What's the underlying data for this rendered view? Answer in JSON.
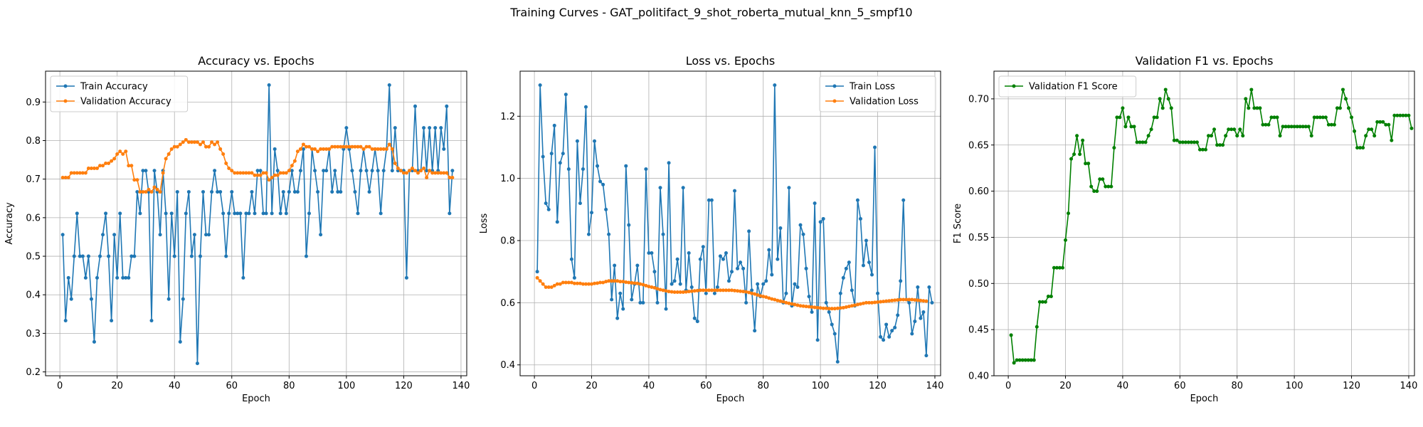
{
  "figure": {
    "suptitle": "Training Curves - GAT_politifact_9_shot_roberta_mutual_knn_5_smpf10"
  },
  "chart_data": [
    {
      "type": "line",
      "title": "Accuracy vs. Epochs",
      "xlabel": "Epoch",
      "ylabel": "Accuracy",
      "xlim": [
        -5,
        142
      ],
      "ylim": [
        0.19,
        0.98
      ],
      "xticks": [
        0,
        20,
        40,
        60,
        80,
        100,
        120,
        140
      ],
      "yticks": [
        0.2,
        0.3,
        0.4,
        0.5,
        0.6,
        0.7,
        0.8,
        0.9
      ],
      "ytick_labels": [
        "0.2",
        "0.3",
        "0.4",
        "0.5",
        "0.6",
        "0.7",
        "0.8",
        "0.9"
      ],
      "grid": true,
      "legend_position": "top-left",
      "series": [
        {
          "name": "Train Accuracy",
          "color": "#1f77b4",
          "values": [
            0.556,
            0.333,
            0.444,
            0.389,
            0.5,
            0.611,
            0.5,
            0.5,
            0.444,
            0.5,
            0.389,
            0.278,
            0.444,
            0.5,
            0.556,
            0.611,
            0.5,
            0.333,
            0.556,
            0.444,
            0.611,
            0.444,
            0.444,
            0.444,
            0.5,
            0.5,
            0.667,
            0.611,
            0.722,
            0.722,
            0.667,
            0.333,
            0.722,
            0.667,
            0.556,
            0.722,
            0.611,
            0.389,
            0.611,
            0.5,
            0.667,
            0.278,
            0.389,
            0.611,
            0.667,
            0.5,
            0.556,
            0.222,
            0.5,
            0.667,
            0.556,
            0.556,
            0.667,
            0.722,
            0.667,
            0.667,
            0.611,
            0.5,
            0.611,
            0.667,
            0.611,
            0.611,
            0.611,
            0.444,
            0.611,
            0.611,
            0.667,
            0.611,
            0.722,
            0.722,
            0.611,
            0.611,
            0.944,
            0.611,
            0.778,
            0.722,
            0.611,
            0.667,
            0.611,
            0.667,
            0.722,
            0.667,
            0.667,
            0.722,
            0.778,
            0.5,
            0.611,
            0.778,
            0.722,
            0.667,
            0.556,
            0.722,
            0.722,
            0.778,
            0.667,
            0.722,
            0.667,
            0.667,
            0.778,
            0.833,
            0.778,
            0.722,
            0.667,
            0.611,
            0.722,
            0.778,
            0.722,
            0.667,
            0.722,
            0.778,
            0.722,
            0.611,
            0.722,
            0.778,
            0.944,
            0.722,
            0.833,
            0.722,
            0.722,
            0.722,
            0.444,
            0.722,
            0.722,
            0.889,
            0.722,
            0.722,
            0.833,
            0.722,
            0.833,
            0.722,
            0.833,
            0.722,
            0.833,
            0.778,
            0.889,
            0.611,
            0.722
          ]
        },
        {
          "name": "Validation Accuracy",
          "color": "#ff7f0e",
          "values": [
            0.704,
            0.704,
            0.704,
            0.716,
            0.716,
            0.716,
            0.716,
            0.716,
            0.716,
            0.728,
            0.728,
            0.728,
            0.728,
            0.735,
            0.735,
            0.741,
            0.741,
            0.747,
            0.753,
            0.765,
            0.772,
            0.765,
            0.772,
            0.735,
            0.735,
            0.698,
            0.698,
            0.667,
            0.667,
            0.667,
            0.673,
            0.667,
            0.679,
            0.673,
            0.667,
            0.716,
            0.753,
            0.765,
            0.778,
            0.784,
            0.784,
            0.79,
            0.796,
            0.802,
            0.796,
            0.796,
            0.796,
            0.796,
            0.79,
            0.796,
            0.784,
            0.784,
            0.796,
            0.79,
            0.796,
            0.778,
            0.765,
            0.741,
            0.728,
            0.722,
            0.716,
            0.716,
            0.716,
            0.716,
            0.716,
            0.716,
            0.716,
            0.71,
            0.71,
            0.71,
            0.716,
            0.716,
            0.698,
            0.704,
            0.71,
            0.71,
            0.716,
            0.716,
            0.716,
            0.722,
            0.735,
            0.747,
            0.772,
            0.778,
            0.79,
            0.784,
            0.784,
            0.778,
            0.778,
            0.772,
            0.778,
            0.778,
            0.778,
            0.778,
            0.784,
            0.784,
            0.784,
            0.784,
            0.784,
            0.784,
            0.784,
            0.784,
            0.784,
            0.784,
            0.784,
            0.778,
            0.784,
            0.784,
            0.778,
            0.778,
            0.778,
            0.778,
            0.778,
            0.778,
            0.79,
            0.778,
            0.741,
            0.728,
            0.722,
            0.716,
            0.716,
            0.722,
            0.728,
            0.722,
            0.716,
            0.722,
            0.728,
            0.704,
            0.722,
            0.716,
            0.716,
            0.716,
            0.716,
            0.716,
            0.716,
            0.704,
            0.704
          ]
        }
      ]
    },
    {
      "type": "line",
      "title": "Loss vs. Epochs",
      "xlabel": "Epoch",
      "ylabel": "Loss",
      "xlim": [
        -5,
        142
      ],
      "ylim": [
        0.365,
        1.345
      ],
      "xticks": [
        0,
        20,
        40,
        60,
        80,
        100,
        120,
        140
      ],
      "yticks": [
        0.4,
        0.6,
        0.8,
        1.0,
        1.2
      ],
      "ytick_labels": [
        "0.4",
        "0.6",
        "0.8",
        "1.0",
        "1.2"
      ],
      "grid": true,
      "legend_position": "top-right",
      "series": [
        {
          "name": "Train Loss",
          "color": "#1f77b4",
          "values": [
            0.7,
            1.3,
            1.07,
            0.92,
            0.9,
            1.08,
            1.17,
            0.86,
            1.05,
            1.08,
            1.27,
            1.03,
            0.74,
            0.68,
            1.12,
            0.92,
            1.03,
            1.23,
            0.82,
            0.89,
            1.12,
            1.04,
            0.99,
            0.98,
            0.9,
            0.82,
            0.61,
            0.72,
            0.55,
            0.63,
            0.58,
            1.04,
            0.85,
            0.61,
            0.66,
            0.72,
            0.6,
            0.6,
            1.03,
            0.76,
            0.76,
            0.7,
            0.6,
            0.97,
            0.82,
            0.58,
            1.05,
            0.66,
            0.67,
            0.74,
            0.66,
            0.97,
            0.64,
            0.76,
            0.65,
            0.55,
            0.54,
            0.74,
            0.78,
            0.63,
            0.93,
            0.93,
            0.63,
            0.65,
            0.75,
            0.74,
            0.76,
            0.67,
            0.7,
            0.96,
            0.71,
            0.73,
            0.71,
            0.6,
            0.83,
            0.64,
            0.51,
            0.66,
            0.62,
            0.66,
            0.67,
            0.77,
            0.69,
            1.3,
            0.74,
            0.84,
            0.6,
            0.63,
            0.97,
            0.59,
            0.66,
            0.65,
            0.85,
            0.82,
            0.71,
            0.62,
            0.57,
            0.92,
            0.48,
            0.86,
            0.87,
            0.6,
            0.57,
            0.53,
            0.5,
            0.41,
            0.63,
            0.68,
            0.71,
            0.73,
            0.64,
            0.59,
            0.93,
            0.87,
            0.72,
            0.8,
            0.73,
            0.69,
            1.1,
            0.63,
            0.49,
            0.48,
            0.53,
            0.49,
            0.51,
            0.52,
            0.56,
            0.67,
            0.93,
            0.61,
            0.6,
            0.5,
            0.54,
            0.65,
            0.55,
            0.57,
            0.43,
            0.65,
            0.6
          ]
        },
        {
          "name": "Validation Loss",
          "color": "#ff7f0e",
          "values": [
            0.68,
            0.67,
            0.66,
            0.65,
            0.65,
            0.65,
            0.655,
            0.66,
            0.66,
            0.665,
            0.665,
            0.665,
            0.665,
            0.662,
            0.662,
            0.662,
            0.66,
            0.66,
            0.66,
            0.66,
            0.662,
            0.663,
            0.665,
            0.665,
            0.668,
            0.67,
            0.67,
            0.67,
            0.67,
            0.668,
            0.668,
            0.666,
            0.665,
            0.664,
            0.663,
            0.662,
            0.66,
            0.658,
            0.655,
            0.652,
            0.65,
            0.648,
            0.645,
            0.642,
            0.64,
            0.638,
            0.636,
            0.635,
            0.634,
            0.634,
            0.634,
            0.634,
            0.635,
            0.636,
            0.637,
            0.638,
            0.639,
            0.64,
            0.64,
            0.64,
            0.64,
            0.64,
            0.64,
            0.64,
            0.64,
            0.64,
            0.64,
            0.64,
            0.64,
            0.639,
            0.638,
            0.637,
            0.636,
            0.635,
            0.633,
            0.63,
            0.628,
            0.625,
            0.622,
            0.62,
            0.618,
            0.615,
            0.612,
            0.61,
            0.607,
            0.605,
            0.603,
            0.6,
            0.598,
            0.596,
            0.594,
            0.592,
            0.59,
            0.589,
            0.588,
            0.587,
            0.586,
            0.585,
            0.584,
            0.583,
            0.582,
            0.582,
            0.581,
            0.581,
            0.581,
            0.582,
            0.583,
            0.584,
            0.586,
            0.588,
            0.59,
            0.592,
            0.594,
            0.596,
            0.598,
            0.6,
            0.6,
            0.6,
            0.601,
            0.602,
            0.603,
            0.604,
            0.605,
            0.606,
            0.607,
            0.608,
            0.609,
            0.61,
            0.61,
            0.61,
            0.61,
            0.61,
            0.609,
            0.608,
            0.607,
            0.606,
            0.605
          ]
        }
      ]
    },
    {
      "type": "line",
      "title": "Validation F1 vs. Epochs",
      "xlabel": "Epoch",
      "ylabel": "F1 Score",
      "xlim": [
        -5,
        142
      ],
      "ylim": [
        0.4,
        0.73
      ],
      "xticks": [
        0,
        20,
        40,
        60,
        80,
        100,
        120,
        140
      ],
      "yticks": [
        0.4,
        0.45,
        0.5,
        0.55,
        0.6,
        0.65,
        0.7
      ],
      "ytick_labels": [
        "0.40",
        "0.45",
        "0.50",
        "0.55",
        "0.60",
        "0.65",
        "0.70"
      ],
      "grid": true,
      "legend_position": "top-left",
      "series": [
        {
          "name": "Validation F1 Score",
          "color": "#008000",
          "values": [
            0.444,
            0.414,
            0.417,
            0.417,
            0.417,
            0.417,
            0.417,
            0.417,
            0.417,
            0.453,
            0.48,
            0.48,
            0.48,
            0.486,
            0.486,
            0.517,
            0.517,
            0.517,
            0.517,
            0.547,
            0.576,
            0.635,
            0.64,
            0.66,
            0.64,
            0.655,
            0.63,
            0.63,
            0.605,
            0.6,
            0.6,
            0.613,
            0.613,
            0.605,
            0.605,
            0.605,
            0.647,
            0.68,
            0.68,
            0.69,
            0.67,
            0.68,
            0.67,
            0.67,
            0.653,
            0.653,
            0.653,
            0.653,
            0.66,
            0.667,
            0.68,
            0.68,
            0.7,
            0.69,
            0.71,
            0.7,
            0.69,
            0.655,
            0.655,
            0.653,
            0.653,
            0.653,
            0.653,
            0.653,
            0.653,
            0.653,
            0.645,
            0.645,
            0.645,
            0.66,
            0.66,
            0.667,
            0.65,
            0.65,
            0.65,
            0.66,
            0.667,
            0.667,
            0.667,
            0.66,
            0.667,
            0.66,
            0.7,
            0.69,
            0.71,
            0.69,
            0.69,
            0.69,
            0.672,
            0.672,
            0.672,
            0.68,
            0.68,
            0.68,
            0.66,
            0.67,
            0.67,
            0.67,
            0.67,
            0.67,
            0.67,
            0.67,
            0.67,
            0.67,
            0.67,
            0.66,
            0.68,
            0.68,
            0.68,
            0.68,
            0.68,
            0.672,
            0.672,
            0.672,
            0.69,
            0.69,
            0.71,
            0.7,
            0.69,
            0.68,
            0.665,
            0.647,
            0.647,
            0.647,
            0.66,
            0.667,
            0.667,
            0.66,
            0.675,
            0.675,
            0.675,
            0.672,
            0.672,
            0.655,
            0.682,
            0.682,
            0.682,
            0.682,
            0.682,
            0.682,
            0.668
          ]
        }
      ]
    }
  ]
}
